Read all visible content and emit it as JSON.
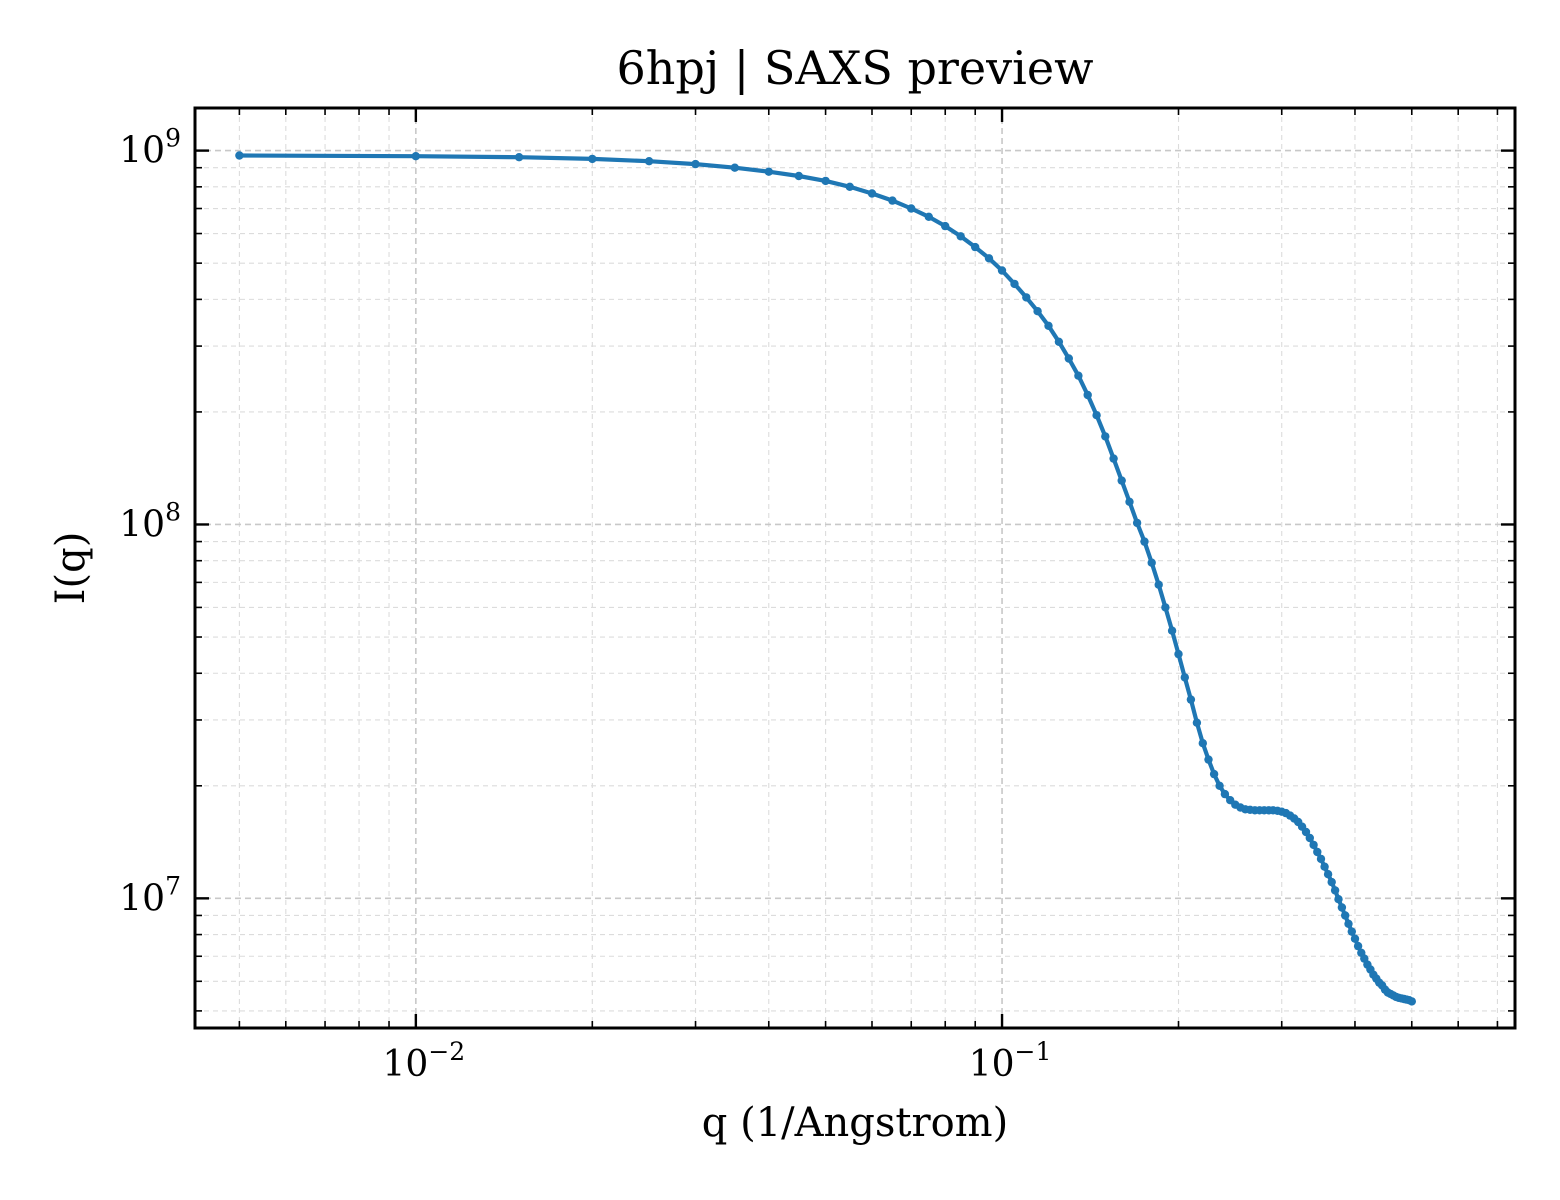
{
  "chart_data": {
    "type": "line",
    "title": "6hpj | SAXS preview",
    "xlabel": "q (1/Angstrom)",
    "ylabel": "I(q)",
    "xscale": "log",
    "yscale": "log",
    "xlim": [
      0.0042,
      0.75
    ],
    "ylim": [
      4500000,
      1300000000
    ],
    "grid": true,
    "legend": "none",
    "xticks": [
      {
        "value": 0.01,
        "base": "10",
        "exp": "−2"
      },
      {
        "value": 0.1,
        "base": "10",
        "exp": "−1"
      }
    ],
    "yticks": [
      {
        "value": 10000000,
        "base": "10",
        "exp": "7"
      },
      {
        "value": 100000000,
        "base": "10",
        "exp": "8"
      },
      {
        "value": 1000000000,
        "base": "10",
        "exp": "9"
      }
    ],
    "series": [
      {
        "color": "#1f77b4",
        "x": [
          0.005,
          0.01,
          0.015,
          0.02,
          0.025,
          0.03,
          0.035,
          0.04,
          0.045,
          0.05,
          0.055,
          0.06,
          0.065,
          0.07,
          0.075,
          0.08,
          0.085,
          0.09,
          0.095,
          0.1,
          0.105,
          0.11,
          0.115,
          0.12,
          0.125,
          0.13,
          0.135,
          0.14,
          0.145,
          0.15,
          0.155,
          0.16,
          0.165,
          0.17,
          0.175,
          0.18,
          0.185,
          0.19,
          0.195,
          0.2,
          0.205,
          0.21,
          0.215,
          0.22,
          0.225,
          0.23,
          0.235,
          0.24,
          0.245,
          0.25,
          0.255,
          0.26,
          0.265,
          0.27,
          0.275,
          0.28,
          0.285,
          0.29,
          0.295,
          0.3,
          0.305,
          0.31,
          0.315,
          0.32,
          0.325,
          0.33,
          0.335,
          0.34,
          0.345,
          0.35,
          0.355,
          0.36,
          0.365,
          0.37,
          0.375,
          0.38,
          0.385,
          0.39,
          0.395,
          0.4,
          0.405,
          0.41,
          0.415,
          0.42,
          0.425,
          0.43,
          0.435,
          0.44,
          0.445,
          0.45,
          0.455,
          0.46,
          0.465,
          0.47,
          0.475,
          0.48,
          0.485,
          0.49,
          0.495,
          0.5
        ],
        "y": [
          970000000,
          966000000,
          960000000,
          950000000,
          937000000,
          920000000,
          900000000,
          878000000,
          855000000,
          830000000,
          800000000,
          768000000,
          735000000,
          700000000,
          665000000,
          628000000,
          590000000,
          552000000,
          515000000,
          478000000,
          440000000,
          405000000,
          372000000,
          340000000,
          308000000,
          278000000,
          250000000,
          222000000,
          196000000,
          172000000,
          150000000,
          131000000,
          115000000,
          101000000,
          90000000,
          79000000,
          69000000,
          60000000,
          52000000,
          45000000,
          39000000,
          34000000,
          29500000,
          26000000,
          23500000,
          21500000,
          20000000,
          19000000,
          18300000,
          17800000,
          17500000,
          17300000,
          17250000,
          17200000,
          17200000,
          17200000,
          17200000,
          17200000,
          17150000,
          17050000,
          16900000,
          16650000,
          16350000,
          16000000,
          15550000,
          15050000,
          14500000,
          13900000,
          13300000,
          12750000,
          12150000,
          11600000,
          11050000,
          10500000,
          9950000,
          9450000,
          9000000,
          8550000,
          8150000,
          7800000,
          7450000,
          7150000,
          6900000,
          6650000,
          6450000,
          6250000,
          6100000,
          5950000,
          5850000,
          5700000,
          5600000,
          5550000,
          5500000,
          5450000,
          5420000,
          5400000,
          5380000,
          5360000,
          5340000,
          5300000
        ]
      }
    ]
  }
}
